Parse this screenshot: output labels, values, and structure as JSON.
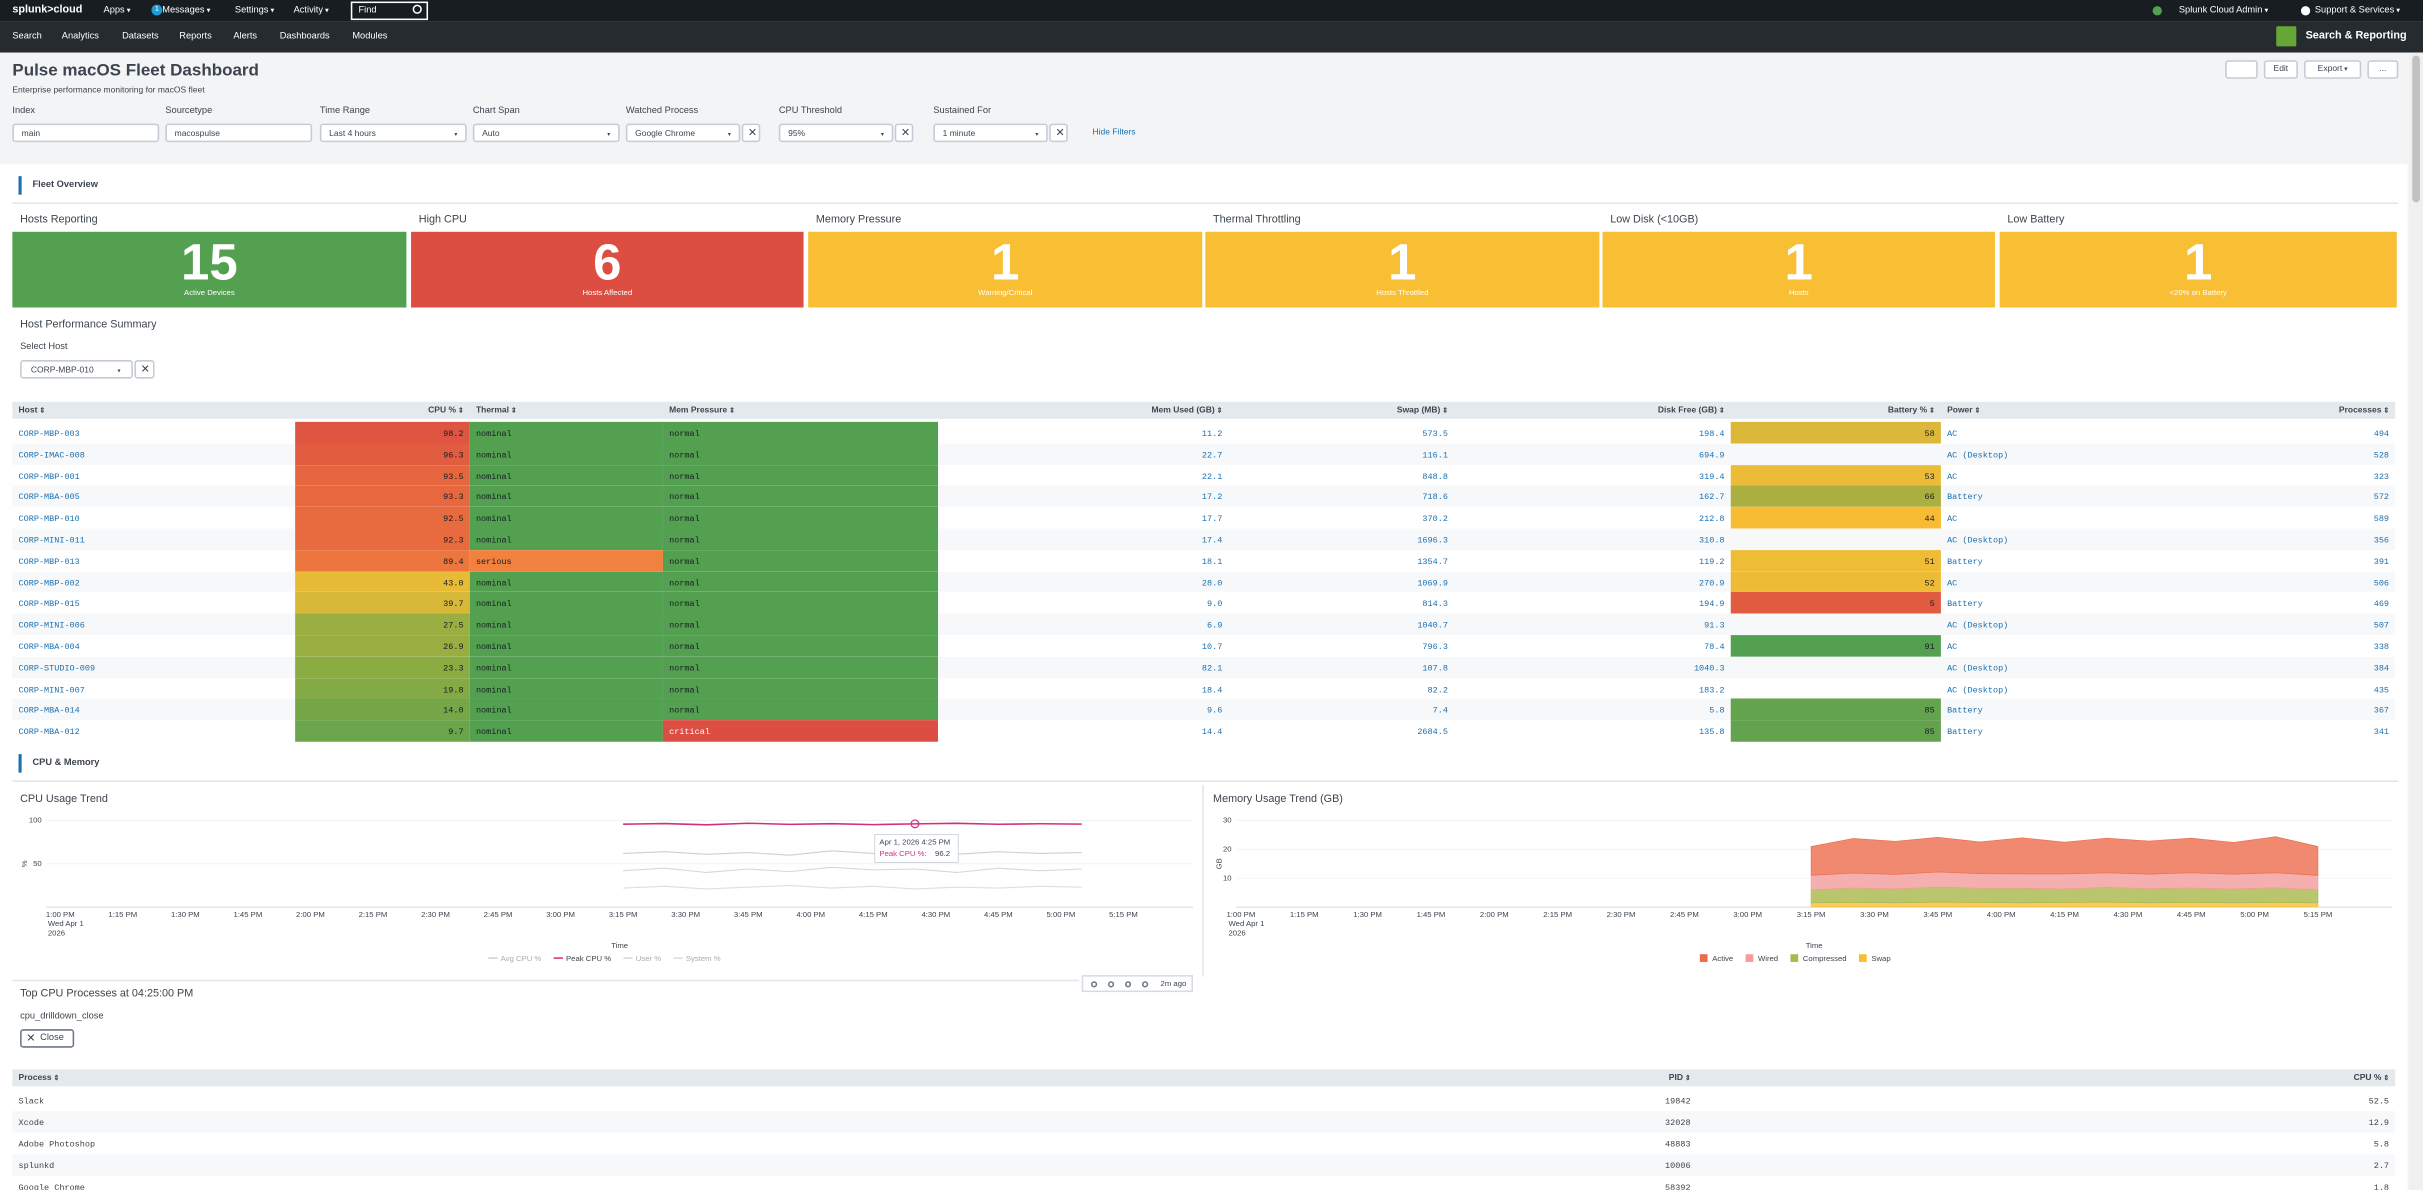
{
  "top_nav": {
    "logo": "splunk>cloud",
    "menus": [
      "Apps",
      "Messages",
      "Settings",
      "Activity"
    ],
    "message_count": "1",
    "search": "Find",
    "user": "Splunk Cloud Admin",
    "support": "Support & Services"
  },
  "app_nav": {
    "items": [
      "Search",
      "Analytics",
      "Datasets",
      "Reports",
      "Alerts",
      "Dashboards",
      "Modules"
    ],
    "app_name": "Search & Reporting"
  },
  "header": {
    "title": "Pulse macOS Fleet Dashboard",
    "subtitle": "Enterprise performance monitoring for macOS fleet",
    "buttons": [
      "Edit",
      "Export",
      "..."
    ]
  },
  "filters": [
    {
      "label": "Index",
      "value": "main"
    },
    {
      "label": "Sourcetype",
      "value": "macospulse"
    },
    {
      "label": "Time Range",
      "value": "Last 4 hours"
    },
    {
      "label": "Chart Span",
      "value": "Auto"
    },
    {
      "label": "Watched Process",
      "value": "Google Chrome"
    },
    {
      "label": "CPU Threshold",
      "value": "95%"
    },
    {
      "label": "Sustained For",
      "value": "1 minute"
    }
  ],
  "hide_filters": "Hide Filters",
  "fleet_overview": {
    "heading": "Fleet Overview",
    "kpis": [
      {
        "title": "Hosts Reporting",
        "value": "15",
        "caption": "Active Devices",
        "color": "#53a051"
      },
      {
        "title": "High CPU",
        "value": "6",
        "caption": "Hosts Affected",
        "color": "#dc4e41"
      },
      {
        "title": "Memory Pressure",
        "value": "1",
        "caption": "Warning/Critical",
        "color": "#f8be34"
      },
      {
        "title": "Thermal Throttling",
        "value": "1",
        "caption": "Hosts Throttled",
        "color": "#f8be34"
      },
      {
        "title": "Low Disk (<10GB)",
        "value": "1",
        "caption": "Hosts",
        "color": "#f8be34"
      },
      {
        "title": "Low Battery",
        "value": "1",
        "caption": "<20% on Battery",
        "color": "#f8be34"
      }
    ]
  },
  "host_summary": {
    "title": "Host Performance Summary",
    "select_label": "Select Host",
    "selected": "CORP-MBP-010",
    "columns": [
      "Host",
      "CPU %",
      "Thermal",
      "Mem Pressure",
      "Mem Used (GB)",
      "Swap (MB)",
      "Disk Free (GB)",
      "Battery %",
      "Power",
      "Processes"
    ],
    "rows": [
      [
        "CORP-MBP-003",
        "98.2",
        "nominal",
        "normal",
        "11.2",
        "573.5",
        "198.4",
        "58",
        "AC",
        "494"
      ],
      [
        "CORP-IMAC-008",
        "96.3",
        "nominal",
        "normal",
        "22.7",
        "116.1",
        "694.9",
        null,
        "AC (Desktop)",
        "528"
      ],
      [
        "CORP-MBP-001",
        "93.5",
        "nominal",
        "normal",
        "22.1",
        "848.8",
        "319.4",
        "53",
        "AC",
        "323"
      ],
      [
        "CORP-MBA-005",
        "93.3",
        "nominal",
        "normal",
        "17.2",
        "718.6",
        "162.7",
        "66",
        "Battery",
        "572"
      ],
      [
        "CORP-MBP-010",
        "92.5",
        "nominal",
        "normal",
        "17.7",
        "370.2",
        "212.8",
        "44",
        "AC",
        "589"
      ],
      [
        "CORP-MINI-011",
        "92.3",
        "nominal",
        "normal",
        "17.4",
        "1696.3",
        "310.8",
        null,
        "AC (Desktop)",
        "356"
      ],
      [
        "CORP-MBP-013",
        "89.4",
        "serious",
        "normal",
        "18.1",
        "1354.7",
        "119.2",
        "51",
        "Battery",
        "391"
      ],
      [
        "CORP-MBP-002",
        "43.0",
        "nominal",
        "normal",
        "28.0",
        "1069.9",
        "270.9",
        "52",
        "AC",
        "506"
      ],
      [
        "CORP-MBP-015",
        "39.7",
        "nominal",
        "normal",
        "9.0",
        "814.3",
        "194.9",
        "5",
        "Battery",
        "469"
      ],
      [
        "CORP-MINI-006",
        "27.5",
        "nominal",
        "normal",
        "6.9",
        "1040.7",
        "91.3",
        null,
        "AC (Desktop)",
        "507"
      ],
      [
        "CORP-MBA-004",
        "26.9",
        "nominal",
        "normal",
        "10.7",
        "796.3",
        "78.4",
        "91",
        "AC",
        "338"
      ],
      [
        "CORP-STUDIO-009",
        "23.3",
        "nominal",
        "normal",
        "82.1",
        "107.8",
        "1040.3",
        null,
        "AC (Desktop)",
        "384"
      ],
      [
        "CORP-MINI-007",
        "19.8",
        "nominal",
        "normal",
        "18.4",
        "82.2",
        "183.2",
        null,
        "AC (Desktop)",
        "435"
      ],
      [
        "CORP-MBA-014",
        "14.0",
        "nominal",
        "normal",
        "9.6",
        "7.4",
        "5.8",
        "85",
        "Battery",
        "367"
      ],
      [
        "CORP-MBA-012",
        "9.7",
        "nominal",
        "critical",
        "14.4",
        "2684.5",
        "135.8",
        "85",
        "Battery",
        "341"
      ]
    ]
  },
  "cpu_memory": {
    "heading": "CPU & Memory",
    "charts": [
      {
        "type": "line",
        "title": "CPU Usage Trend",
        "x_label": "Time",
        "y_label": "%",
        "first_date": "Wed Apr 1",
        "first_year": "2026",
        "xticks": [
          "1:00 PM",
          "1:15 PM",
          "1:30 PM",
          "1:45 PM",
          "2:00 PM",
          "2:15 PM",
          "2:30 PM",
          "2:45 PM",
          "3:00 PM",
          "3:15 PM",
          "3:30 PM",
          "3:45 PM",
          "4:00 PM",
          "4:15 PM",
          "4:30 PM",
          "4:45 PM",
          "5:00 PM",
          "5:15 PM"
        ],
        "ylim": [
          0,
          100
        ],
        "yticks": [
          50,
          100
        ],
        "x": [
          "3:15 PM",
          "3:25 PM",
          "3:35 PM",
          "3:45 PM",
          "3:55 PM",
          "4:05 PM",
          "4:15 PM",
          "4:25 PM",
          "4:35 PM",
          "4:45 PM",
          "4:55 PM",
          "5:05 PM"
        ],
        "series": [
          {
            "name": "Avg CPU %",
            "color": "#cfcfcf",
            "values": [
              62,
              64,
              61,
              63,
              60,
              65,
              62,
              63,
              61,
              64,
              62,
              63
            ]
          },
          {
            "name": "Peak CPU %",
            "color": "#d4307a",
            "values": [
              95.8,
              96.5,
              95.1,
              96.9,
              95.6,
              96.4,
              95.3,
              96.2,
              96.8,
              95.7,
              96.3,
              95.9
            ]
          },
          {
            "name": "User %",
            "color": "#d6d6d6",
            "values": [
              42,
              45,
              40,
              44,
              41,
              46,
              43,
              44,
              40,
              45,
              42,
              44
            ]
          },
          {
            "name": "System %",
            "color": "#dedede",
            "values": [
              22,
              24,
              21,
              23,
              25,
              22,
              24,
              21,
              23,
              22,
              24,
              23
            ]
          }
        ]
      },
      {
        "type": "stacked_area",
        "title": "Memory Usage Trend (GB)",
        "x_label": "Time",
        "y_label": "GB",
        "first_date": "Wed Apr 1",
        "first_year": "2026",
        "xticks": [
          "1:00 PM",
          "1:15 PM",
          "1:30 PM",
          "1:45 PM",
          "2:00 PM",
          "2:15 PM",
          "2:30 PM",
          "2:45 PM",
          "3:00 PM",
          "3:15 PM",
          "3:30 PM",
          "3:45 PM",
          "4:00 PM",
          "4:15 PM",
          "4:30 PM",
          "4:45 PM",
          "5:00 PM",
          "5:15 PM"
        ],
        "ylim": [
          0,
          30
        ],
        "yticks": [
          10,
          20,
          30
        ],
        "x": [
          "3:15 PM",
          "3:25 PM",
          "3:35 PM",
          "3:45 PM",
          "3:55 PM",
          "4:05 PM",
          "4:15 PM",
          "4:25 PM",
          "4:35 PM",
          "4:45 PM",
          "4:55 PM",
          "5:05 PM",
          "5:15 PM"
        ],
        "series": [
          {
            "name": "Active",
            "color": "#ec6b4c",
            "values": [
              10,
              12,
              11.5,
              12,
              11,
              12.5,
              11,
              12,
              11.5,
              12,
              11,
              12.5,
              10
            ]
          },
          {
            "name": "Wired",
            "color": "#f49b9b",
            "values": [
              5,
              5.2,
              5,
              5.3,
              5.1,
              5,
              5.2,
              5.1,
              5,
              5.3,
              5.1,
              5.2,
              5
            ]
          },
          {
            "name": "Compressed",
            "color": "#a9b84a",
            "values": [
              4.5,
              5,
              4.8,
              5.2,
              4.9,
              5,
              4.7,
              5.1,
              4.9,
              5,
              4.8,
              5.1,
              4.5
            ]
          },
          {
            "name": "Swap",
            "color": "#f8be34",
            "values": [
              1.5,
              1.6,
              1.5,
              1.7,
              1.6,
              1.5,
              1.6,
              1.7,
              1.5,
              1.6,
              1.5,
              1.6,
              1.5
            ]
          }
        ]
      }
    ],
    "tooltip": {
      "time": "Apr 1, 2026 4:25 PM",
      "label": "Peak CPU %:",
      "value": "96.2"
    },
    "toolbar": {
      "refreshed": "2m ago"
    }
  },
  "processes": {
    "title": "Top CPU Processes at 04:25:00 PM",
    "token": "cpu_drilldown_close",
    "close": "Close",
    "columns": [
      "Process",
      "PID",
      "CPU %"
    ],
    "rows": [
      [
        "Slack",
        "19842",
        "52.5"
      ],
      [
        "Xcode",
        "32028",
        "12.9"
      ],
      [
        "Adobe Photoshop",
        "48883",
        "5.8"
      ],
      [
        "splunkd",
        "10006",
        "2.7"
      ],
      [
        "Google Chrome",
        "58392",
        "1.8"
      ]
    ]
  }
}
